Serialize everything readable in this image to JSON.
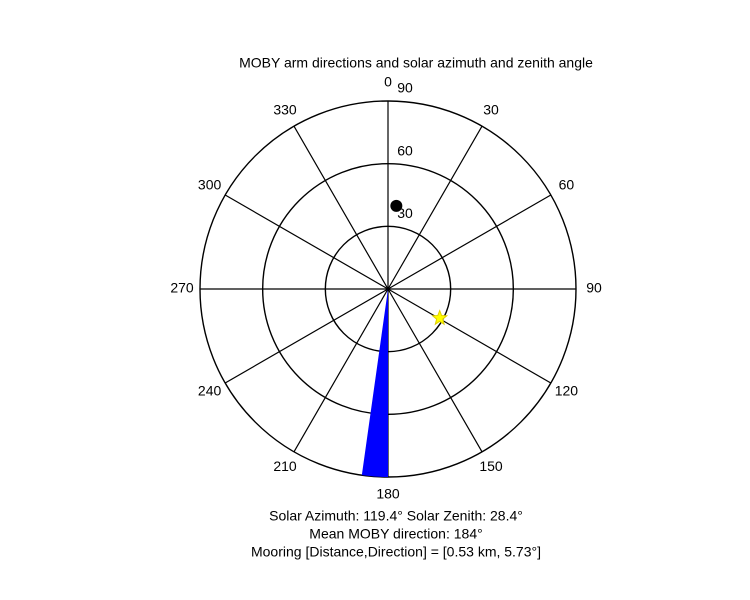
{
  "chart_data": {
    "type": "polar",
    "title": "MOBY arm directions and solar azimuth and zenith angle",
    "rlim": [
      0,
      90
    ],
    "rticks": [
      30,
      60,
      90
    ],
    "thetaticks": [
      0,
      30,
      60,
      90,
      120,
      150,
      180,
      210,
      240,
      270,
      300,
      330
    ],
    "sun": {
      "theta": 119.4,
      "r": 28.4,
      "color": "#ffff00"
    },
    "mooring": {
      "theta": 5.73,
      "r": 40,
      "color": "#000000"
    },
    "moby": {
      "theta": 184,
      "width": 8,
      "r": 90,
      "color": "#0000ff"
    },
    "annotations": [
      "Solar Azimuth: 119.4°   Solar Zenith: 28.4°",
      "Mean MOBY direction: 184°",
      "Mooring [Distance,Direction] = [0.53 km, 5.73°]"
    ]
  }
}
